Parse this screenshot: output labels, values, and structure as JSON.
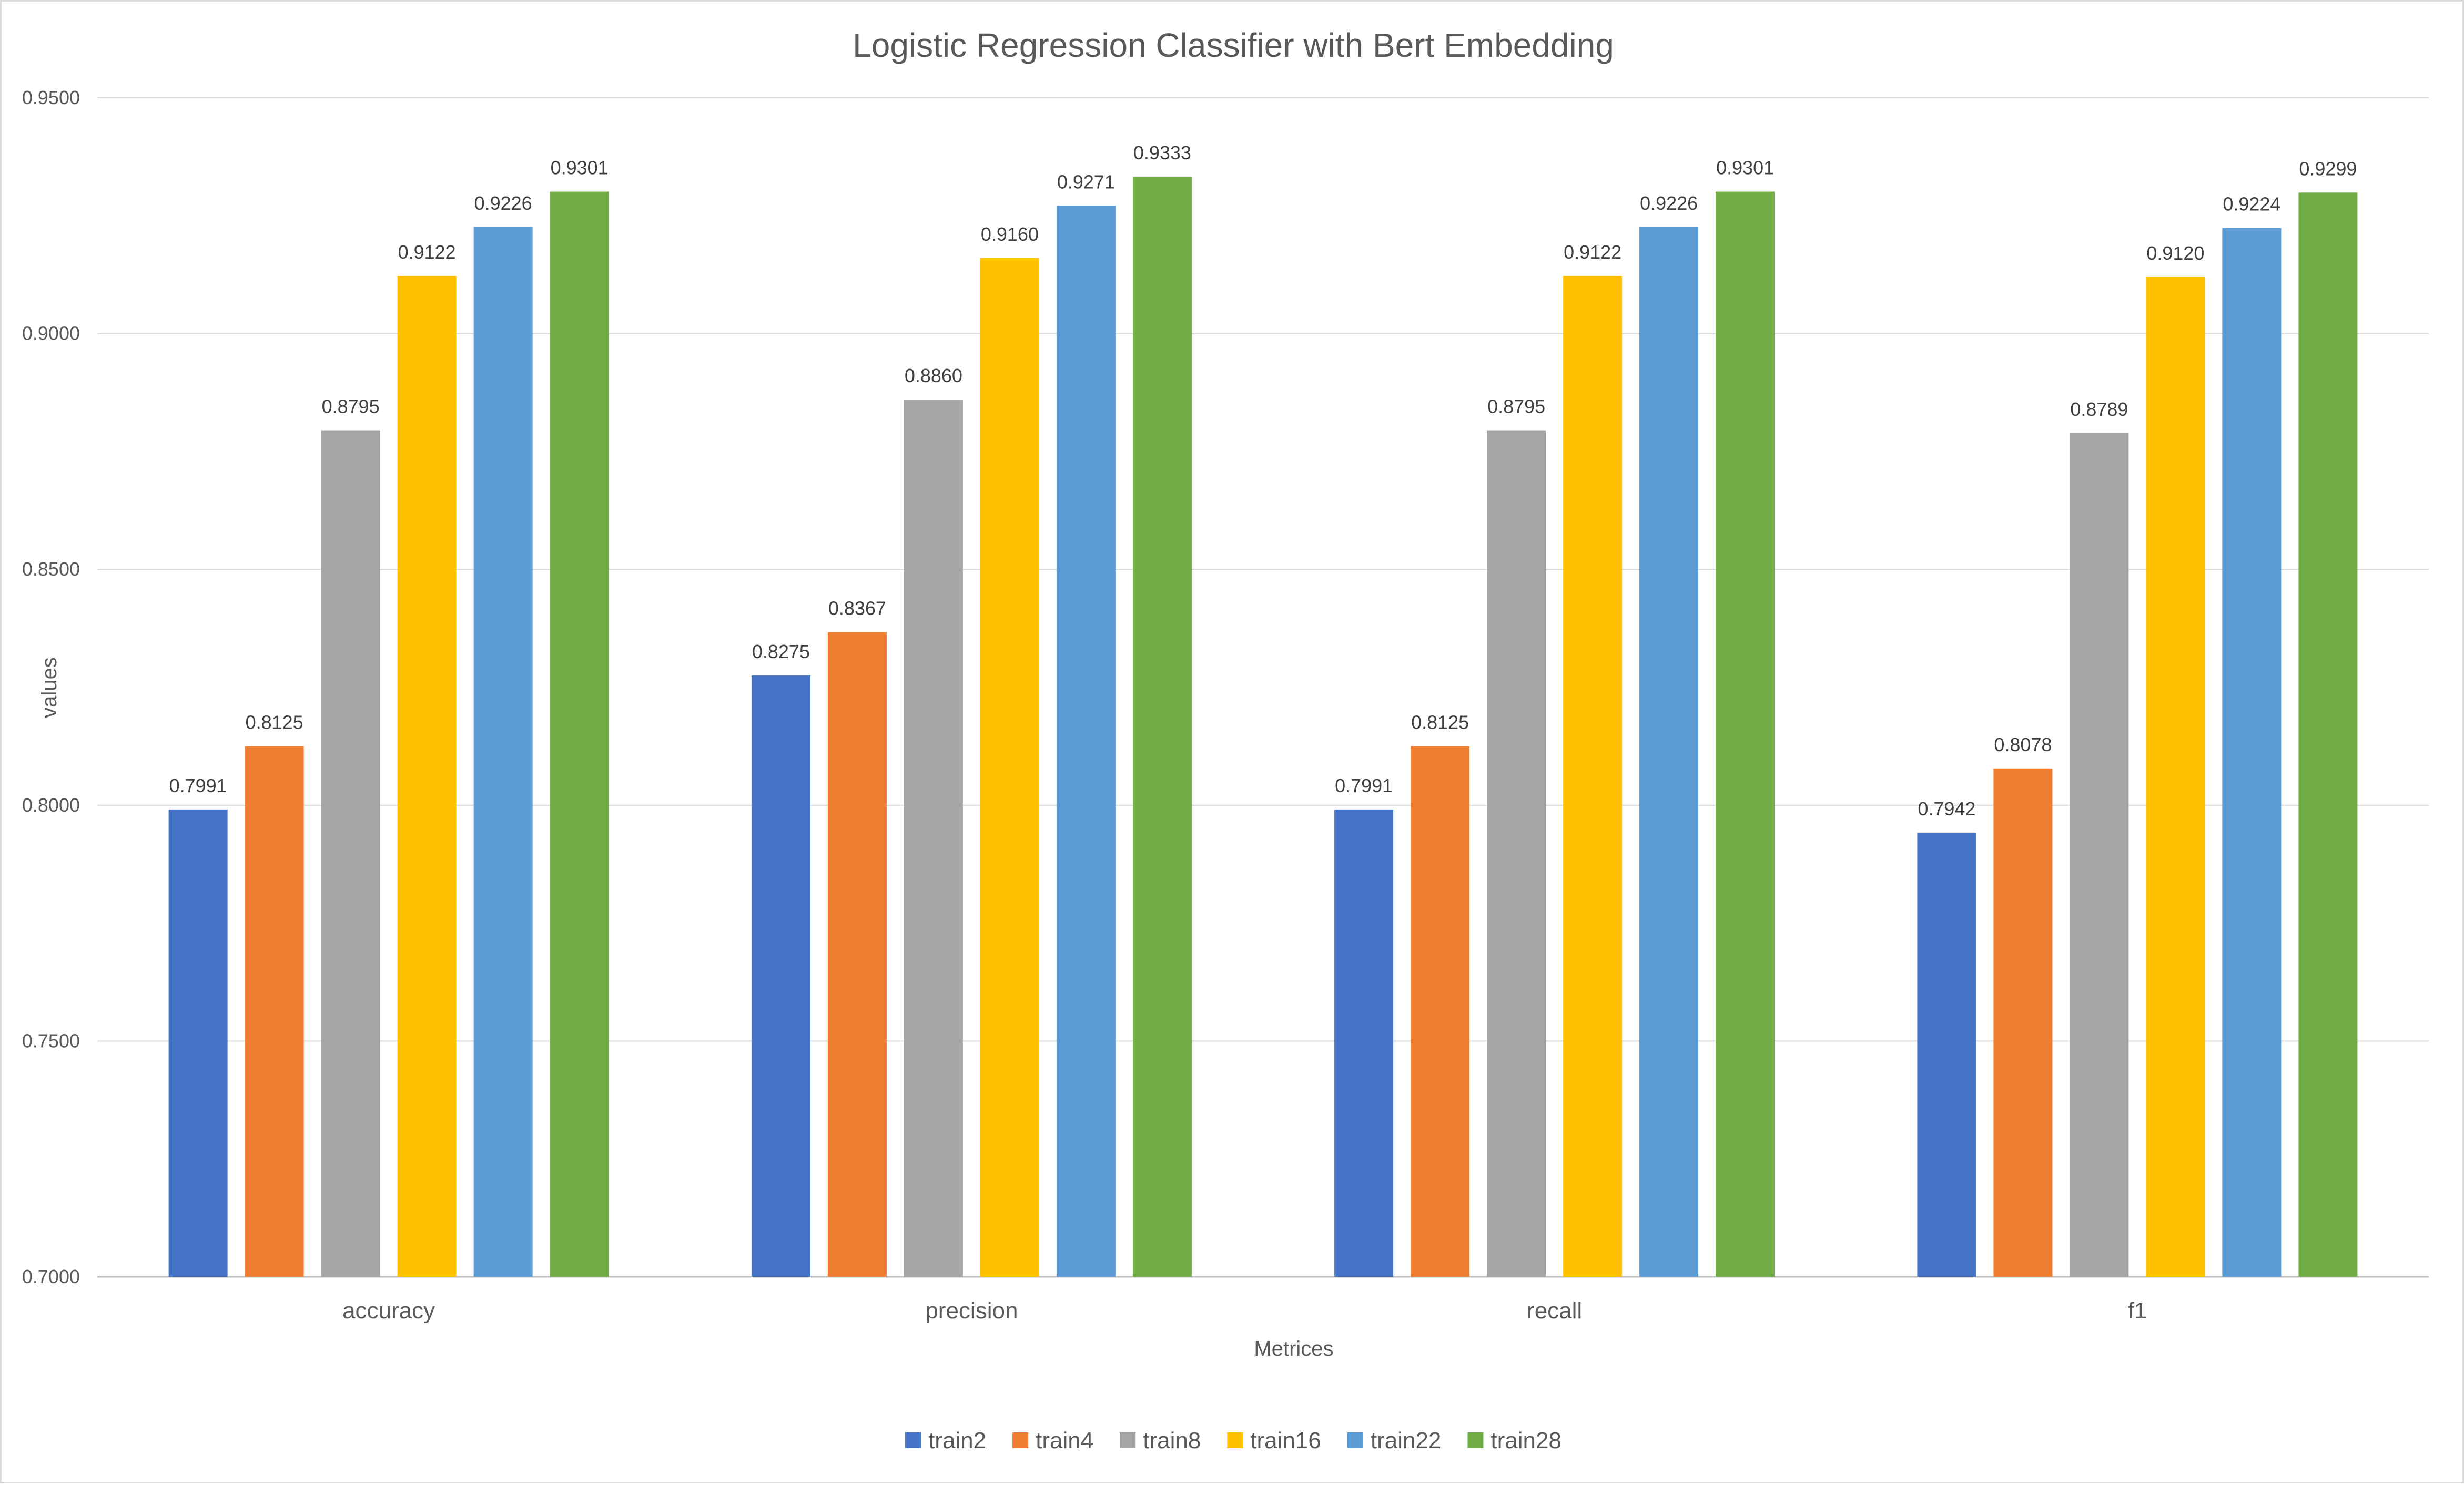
{
  "chart_data": {
    "type": "bar",
    "title": "Logistic Regression Classifier with Bert Embedding",
    "xlabel": "Metrices",
    "ylabel": "values",
    "ylim": [
      0.7,
      0.95
    ],
    "y_ticks": [
      "0.7000",
      "0.7500",
      "0.8000",
      "0.8500",
      "0.9000",
      "0.9500"
    ],
    "grid": true,
    "legend_position": "bottom",
    "categories": [
      "accuracy",
      "precision",
      "recall",
      "f1"
    ],
    "series": [
      {
        "name": "train2",
        "color": "#4472C4",
        "values": [
          0.7991,
          0.8275,
          0.7991,
          0.7942
        ]
      },
      {
        "name": "train4",
        "color": "#ED7D31",
        "values": [
          0.8125,
          0.8367,
          0.8125,
          0.8078
        ]
      },
      {
        "name": "train8",
        "color": "#A5A5A5",
        "values": [
          0.8795,
          0.886,
          0.8795,
          0.8789
        ]
      },
      {
        "name": "train16",
        "color": "#FFC000",
        "values": [
          0.9122,
          0.916,
          0.9122,
          0.912
        ]
      },
      {
        "name": "train22",
        "color": "#5B9BD5",
        "values": [
          0.9226,
          0.9271,
          0.9226,
          0.9224
        ]
      },
      {
        "name": "train28",
        "color": "#70AD47",
        "values": [
          0.9301,
          0.9333,
          0.9301,
          0.9299
        ]
      }
    ]
  }
}
